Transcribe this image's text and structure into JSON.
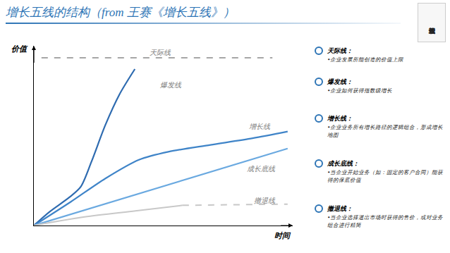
{
  "chart_data": {
    "type": "line",
    "title": "增长五线的结构（from 王赛《增长五线》）",
    "x_label": "时间",
    "y_label": "价值",
    "xlim": [
      0,
      102
    ],
    "ylim": [
      0,
      105
    ],
    "tick_labels": false,
    "grid": false,
    "series": [
      {
        "name": "天际线",
        "color": "#a6a6a6",
        "line_style": "dashed",
        "x": [
          3,
          94
        ],
        "values": [
          98,
          98
        ]
      },
      {
        "name": "爆发线",
        "color": "#2e6bb0",
        "line_style": "solid",
        "x": [
          0,
          6,
          14,
          18.5,
          22.7,
          28.2,
          33.7,
          39.8
        ],
        "values": [
          0,
          7.8,
          16.5,
          22.7,
          37.3,
          58.8,
          76.5,
          91.4
        ]
      },
      {
        "name": "增长线",
        "color": "#3f84c8",
        "line_style": "solid",
        "x": [
          0,
          14.4,
          28.2,
          41.4,
          53,
          69.6,
          86.2,
          100
        ],
        "values": [
          0,
          13.7,
          27.5,
          38.4,
          43.1,
          47.1,
          51,
          54.9
        ]
      },
      {
        "name": "成长底线",
        "color": "#6aa9e0",
        "line_style": "solid",
        "x": [
          0,
          100
        ],
        "values": [
          0,
          45
        ]
      },
      {
        "name": "撤退线",
        "color": "#c8c8c8",
        "line_style": "solid",
        "x": [
          0,
          20,
          40,
          58.6
        ],
        "values": [
          0,
          5,
          8.5,
          11.8
        ]
      },
      {
        "name": "撤退线",
        "color": "#c8c8c8",
        "line_style": "dashed",
        "x": [
          58.6,
          100
        ],
        "values": [
          11.8,
          12.5
        ]
      }
    ],
    "annotations": [
      {
        "text": "天际线",
        "x": 50,
        "y": 101
      },
      {
        "text": "爆发线",
        "x": 54,
        "y": 82
      },
      {
        "text": "增长线",
        "x": 89,
        "y": 58
      },
      {
        "text": "成长底线",
        "x": 89.5,
        "y": 33
      },
      {
        "text": "撤退线",
        "x": 91,
        "y": 14.5
      }
    ]
  },
  "side_panel": {
    "items": [
      {
        "title": "天际线：",
        "text": "•企业发展所能创造的价值上限"
      },
      {
        "title": "爆发线：",
        "text": "•企业如何获得指数级增长"
      },
      {
        "title": "增长线：",
        "text": "•企业业务所有增长路径的逻辑组合，形成增长地图"
      },
      {
        "title": "成长底线：",
        "text": "•当企业开始业务（如：固定的客户合同）能获得的保底价值"
      },
      {
        "title": "撤退线：",
        "text": "•当企业选择退出市场时获得的售价，或对业务组合进行精简"
      }
    ]
  },
  "book_cover": {
    "text": "增长五线"
  }
}
